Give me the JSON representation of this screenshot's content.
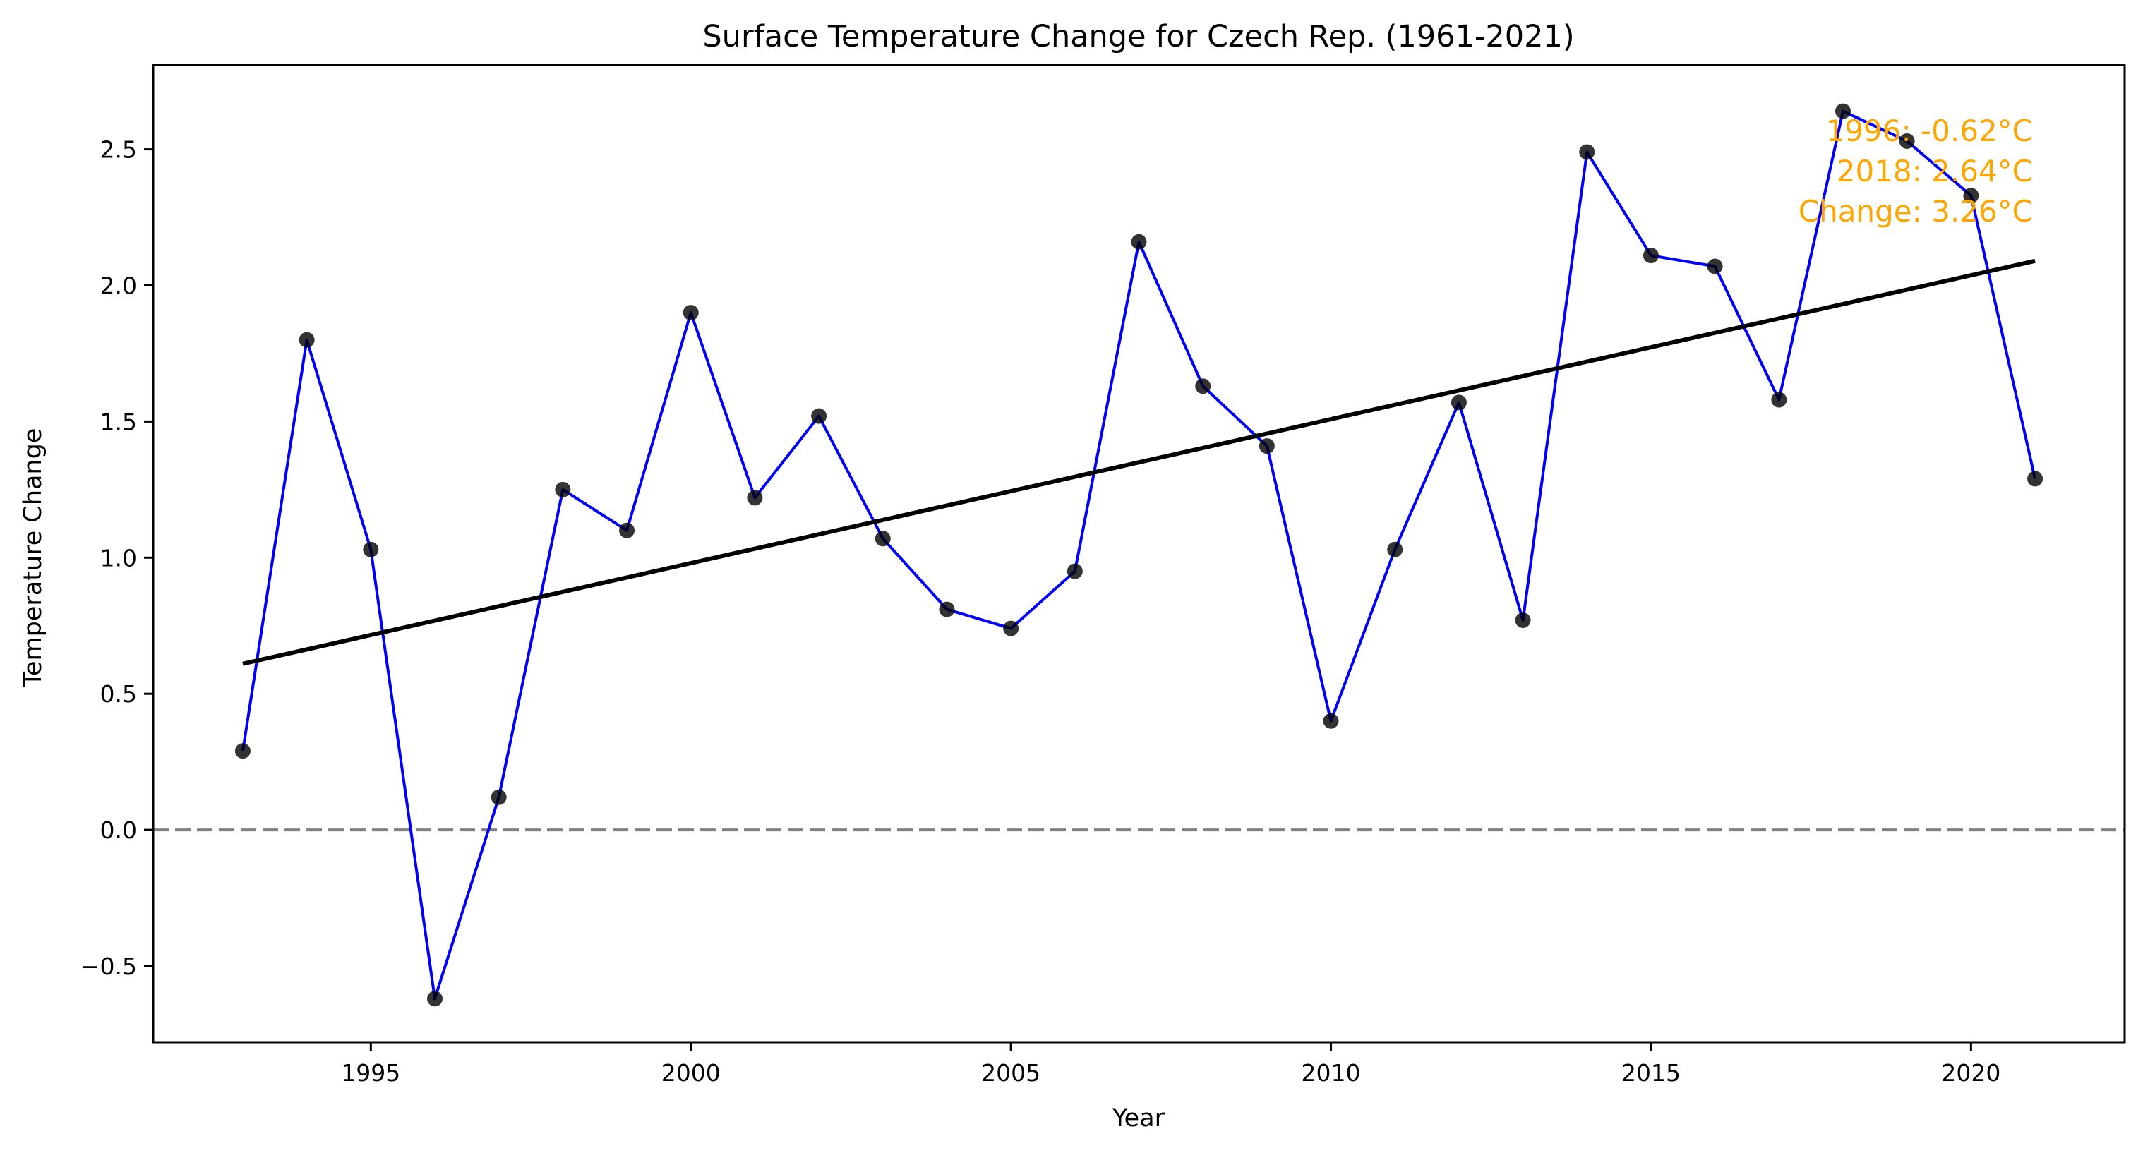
{
  "chart_data": {
    "type": "line",
    "title": "Surface Temperature Change for Czech Rep. (1961-2021)",
    "xlabel": "Year",
    "ylabel": "Temperature Change",
    "xlim": [
      1991.6,
      2022.4
    ],
    "ylim": [
      -0.78,
      2.81
    ],
    "x_ticks": [
      1995,
      2000,
      2005,
      2010,
      2015,
      2020
    ],
    "y_ticks": [
      -0.5,
      0.0,
      0.5,
      1.0,
      1.5,
      2.0,
      2.5
    ],
    "x_tick_labels": [
      "1995",
      "2000",
      "2005",
      "2010",
      "2015",
      "2020"
    ],
    "y_tick_labels": [
      "−0.5",
      "0.0",
      "0.5",
      "1.0",
      "1.5",
      "2.0",
      "2.5"
    ],
    "grid": false,
    "series": [
      {
        "x": [
          1993,
          1994,
          1995,
          1996,
          1997,
          1998,
          1999,
          2000,
          2001,
          2002,
          2003,
          2004,
          2005,
          2006,
          2007,
          2008,
          2009,
          2010,
          2011,
          2012,
          2013,
          2014,
          2015,
          2016,
          2017,
          2018,
          2019,
          2020,
          2021
        ],
        "values": [
          0.29,
          1.8,
          1.03,
          -0.62,
          0.12,
          1.25,
          1.1,
          1.9,
          1.22,
          1.52,
          1.07,
          0.81,
          0.74,
          0.95,
          2.16,
          1.63,
          1.41,
          0.4,
          1.03,
          1.57,
          0.77,
          2.49,
          2.11,
          2.07,
          1.58,
          2.64,
          2.53,
          2.33,
          1.29
        ],
        "line_color": "#0000ff",
        "marker_color": "#000000"
      }
    ],
    "trend_line": {
      "x": [
        1993,
        2021
      ],
      "y": [
        0.61,
        2.09
      ],
      "color": "#000000"
    },
    "reference_line": {
      "y": 0.0,
      "style": "dashed",
      "color": "#808080"
    },
    "annotation": {
      "lines": [
        "1996: -0.62°C",
        "2018: 2.64°C",
        "Change: 3.26°C"
      ],
      "color": "#ffa500",
      "placement": "top-right"
    }
  }
}
